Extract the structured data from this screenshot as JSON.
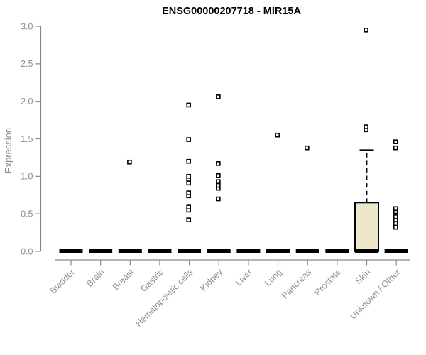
{
  "chart_data": {
    "type": "boxplot",
    "title": "ENSG00000207718 - MIR15A",
    "xlabel": "",
    "ylabel": "Expression",
    "ylim": [
      0.0,
      3.0
    ],
    "ytick_labels": [
      "0.0",
      "0.5",
      "1.0",
      "1.5",
      "2.0",
      "2.5",
      "3.0"
    ],
    "grid": false,
    "legend": null,
    "categories": [
      "Bladder",
      "Brain",
      "Breast",
      "Gastric",
      "Hematopoietic cells",
      "Kidney",
      "Liver",
      "Lung",
      "Pancreas",
      "Prostate",
      "Skin",
      "Unknown / Other"
    ],
    "series": [
      {
        "category": "Bladder",
        "q1": 0,
        "median": 0,
        "q3": 0,
        "whisker_low": 0,
        "whisker_high": 0,
        "outliers": []
      },
      {
        "category": "Brain",
        "q1": 0,
        "median": 0,
        "q3": 0,
        "whisker_low": 0,
        "whisker_high": 0,
        "outliers": []
      },
      {
        "category": "Breast",
        "q1": 0,
        "median": 0,
        "q3": 0,
        "whisker_low": 0,
        "whisker_high": 0,
        "outliers": [
          1.19
        ]
      },
      {
        "category": "Gastric",
        "q1": 0,
        "median": 0,
        "q3": 0,
        "whisker_low": 0,
        "whisker_high": 0,
        "outliers": []
      },
      {
        "category": "Hematopoietic cells",
        "q1": 0,
        "median": 0,
        "q3": 0,
        "whisker_low": 0,
        "whisker_high": 0,
        "outliers": [
          0.42,
          0.55,
          0.59,
          0.74,
          0.78,
          0.91,
          0.96,
          1.0,
          1.2,
          1.49,
          1.95
        ]
      },
      {
        "category": "Kidney",
        "q1": 0,
        "median": 0,
        "q3": 0,
        "whisker_low": 0,
        "whisker_high": 0,
        "outliers": [
          0.7,
          0.84,
          0.88,
          0.93,
          1.01,
          1.17,
          2.06
        ]
      },
      {
        "category": "Liver",
        "q1": 0,
        "median": 0,
        "q3": 0,
        "whisker_low": 0,
        "whisker_high": 0,
        "outliers": []
      },
      {
        "category": "Lung",
        "q1": 0,
        "median": 0,
        "q3": 0,
        "whisker_low": 0,
        "whisker_high": 0,
        "outliers": [
          1.55
        ]
      },
      {
        "category": "Pancreas",
        "q1": 0,
        "median": 0,
        "q3": 0,
        "whisker_low": 0,
        "whisker_high": 0,
        "outliers": [
          1.38
        ]
      },
      {
        "category": "Prostate",
        "q1": 0,
        "median": 0,
        "q3": 0,
        "whisker_low": 0,
        "whisker_high": 0,
        "outliers": []
      },
      {
        "category": "Skin",
        "q1": 0,
        "median": 0,
        "q3": 0.65,
        "whisker_low": 0,
        "whisker_high": 1.35,
        "outliers": [
          1.62,
          1.66,
          2.95
        ]
      },
      {
        "category": "Unknown / Other",
        "q1": 0,
        "median": 0,
        "q3": 0,
        "whisker_low": 0,
        "whisker_high": 0,
        "outliers": [
          0.32,
          0.37,
          0.42,
          0.46,
          0.53,
          0.57,
          1.38,
          1.46
        ]
      }
    ],
    "colors": {
      "box_fill": "#ede8cb",
      "box_stroke": "#000000",
      "median_bar": "#000000",
      "outlier_stroke": "#000000",
      "outlier_fill": "#ffffff",
      "axis": "#878787",
      "tick_label": "#8e8e8e",
      "title_color": "#000000",
      "background": "#ffffff"
    }
  }
}
